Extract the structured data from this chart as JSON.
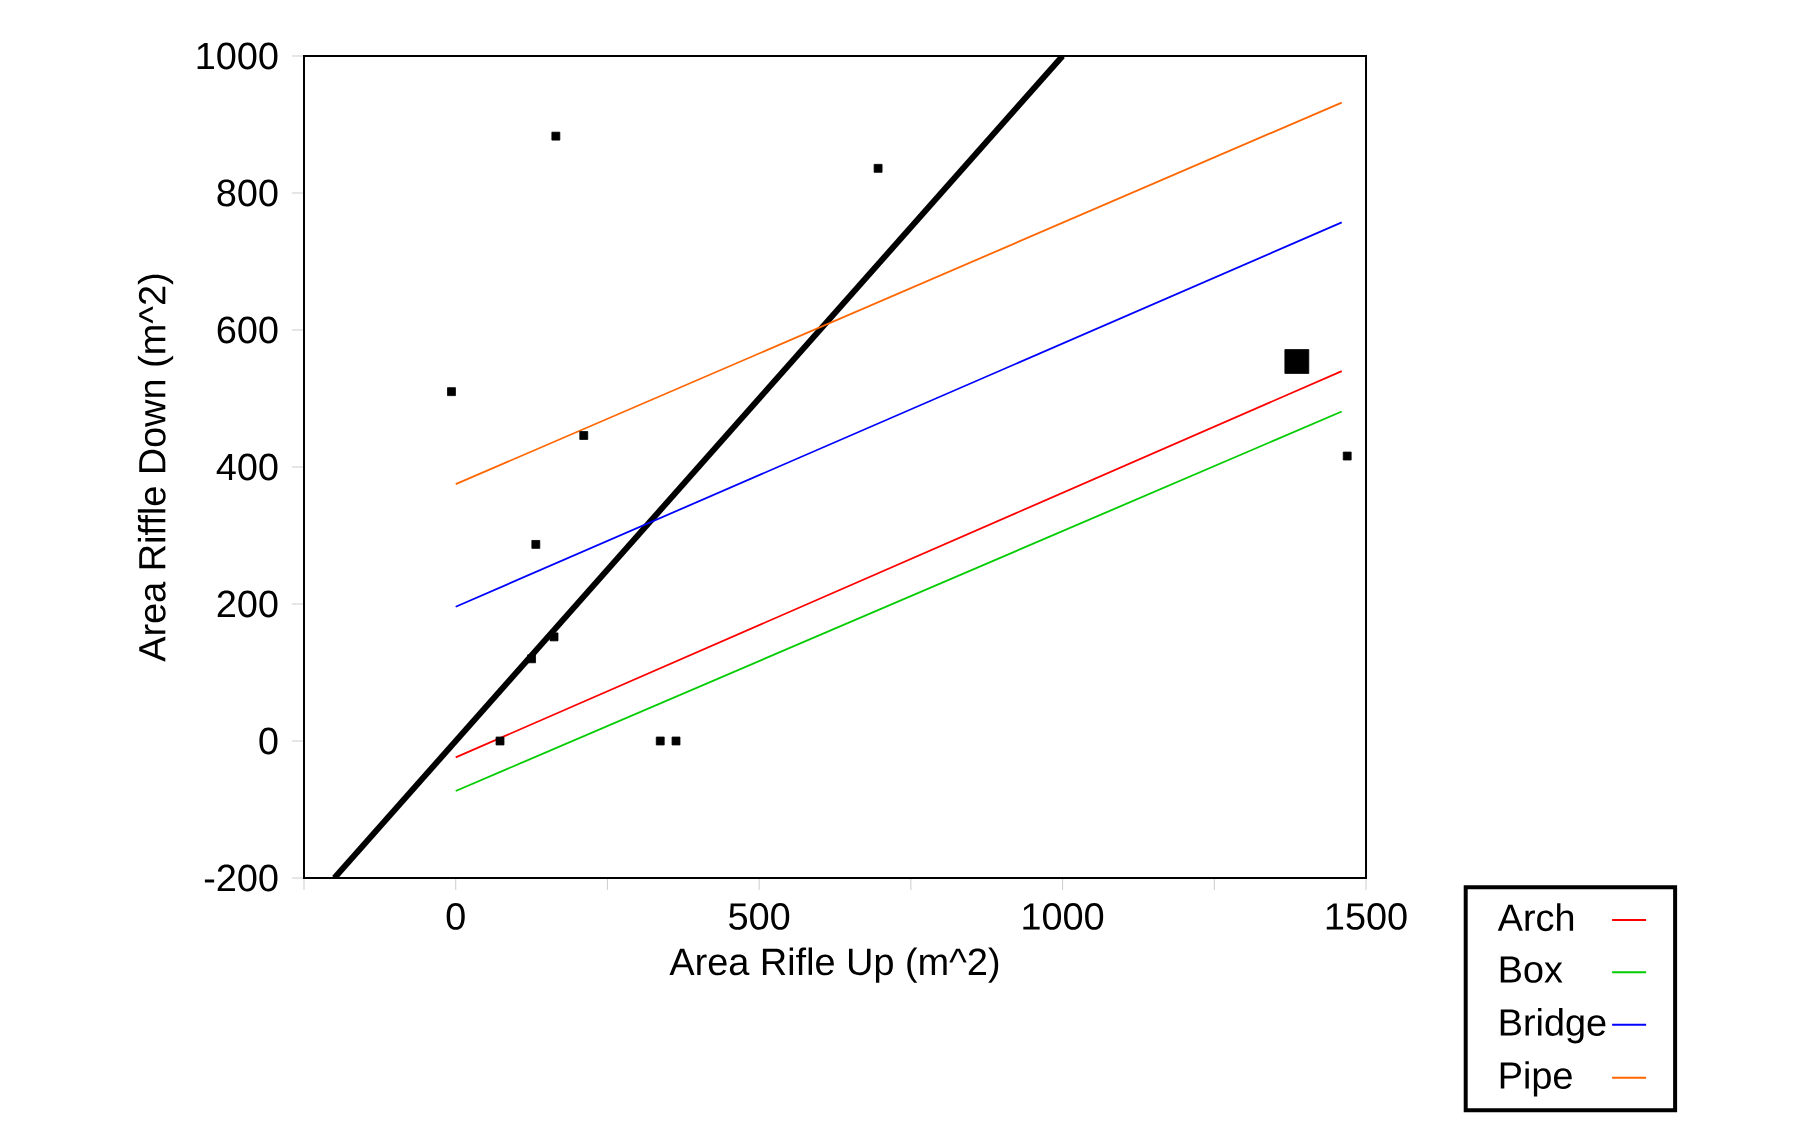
{
  "chart_data": {
    "type": "line",
    "xlabel": "Area Rifle Up (m^2)",
    "ylabel": "Area Riffle Down (m^2)",
    "xlim": [
      -250,
      1500
    ],
    "ylim": [
      -200,
      1000
    ],
    "xticks": [
      {
        "value": -250,
        "label": null
      },
      0,
      {
        "value": 250,
        "label": null
      },
      500,
      {
        "value": 750,
        "label": null
      },
      1000,
      {
        "value": 1250,
        "label": null
      },
      1500
    ],
    "yticks": [
      -200,
      0,
      200,
      400,
      600,
      800,
      1000
    ],
    "legend": "bottom right",
    "grid": false,
    "series": [
      {
        "type": "bubble",
        "marker": "square",
        "color": "#000000",
        "x": [
          -7,
          165,
          696,
          211,
          132,
          162,
          125,
          73,
          337,
          363,
          1386,
          1469
        ],
        "values": [
          510,
          883,
          836,
          446,
          287,
          152,
          120,
          0,
          0,
          0,
          554,
          416
        ],
        "sizes": [
          0.11,
          0.11,
          0.11,
          0.11,
          0.11,
          0.11,
          0.11,
          0.11,
          0.11,
          0.11,
          1,
          0.11
        ]
      },
      {
        "type": "line",
        "color": "#000000",
        "x": [
          -200,
          1000
        ],
        "values": [
          -200,
          1000
        ]
      },
      {
        "name": "Arch",
        "color": "#ff0000",
        "x": [
          0,
          1460
        ],
        "values": [
          -24,
          540
        ]
      },
      {
        "name": "Box",
        "color": "#00cc00",
        "x": [
          0,
          1460
        ],
        "values": [
          -73,
          481
        ]
      },
      {
        "name": "Bridge",
        "color": "#0000ff",
        "x": [
          0,
          1460
        ],
        "values": [
          196,
          757
        ]
      },
      {
        "name": "Pipe",
        "color": "#ff6600",
        "x": [
          0,
          1460
        ],
        "values": [
          375,
          932
        ]
      }
    ]
  }
}
